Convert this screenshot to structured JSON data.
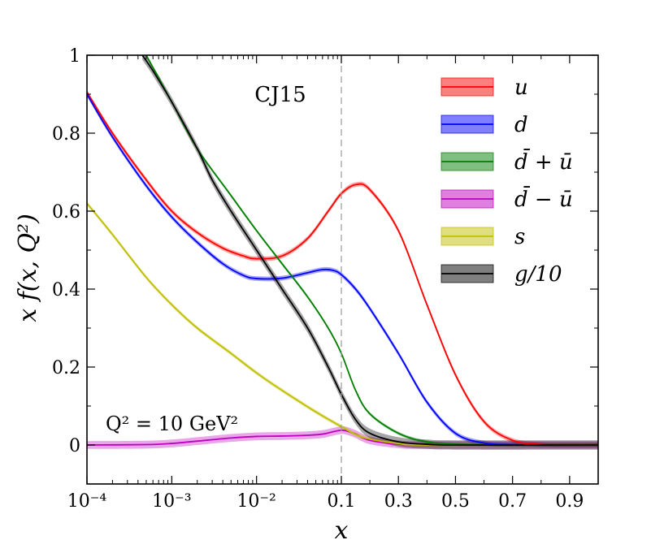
{
  "chart_data": {
    "type": "line",
    "title": "CJ15",
    "annotation": "Q² = 10 GeV²",
    "xlabel": "x",
    "ylabel": "x f(x, Q²)",
    "x_scale": "log below 0.1, linear above 0.1",
    "xlim": [
      0.0001,
      1.0
    ],
    "ylim": [
      -0.1,
      1.0
    ],
    "xticks": [
      0.0001,
      0.001,
      0.01,
      0.1,
      0.3,
      0.5,
      0.7,
      0.9
    ],
    "xtick_labels": [
      "10⁻⁴",
      "10⁻³",
      "10⁻²",
      "0.1",
      "0.3",
      "0.5",
      "0.7",
      "0.9"
    ],
    "yticks": [
      0,
      0.2,
      0.4,
      0.6,
      0.8,
      1
    ],
    "ytick_labels": [
      "0",
      "0.2",
      "0.4",
      "0.6",
      "0.8",
      "1"
    ],
    "reference_line": {
      "x": 0.1,
      "style": "dashed",
      "color": "#999999"
    },
    "legend_position": "top-right",
    "series": [
      {
        "name": "u",
        "label": "u",
        "color": "#ff0000",
        "band": 0.006,
        "points": [
          [
            0.0001,
            0.905
          ],
          [
            0.0002,
            0.8
          ],
          [
            0.0005,
            0.68
          ],
          [
            0.001,
            0.6
          ],
          [
            0.002,
            0.545
          ],
          [
            0.004,
            0.505
          ],
          [
            0.007,
            0.485
          ],
          [
            0.01,
            0.478
          ],
          [
            0.02,
            0.485
          ],
          [
            0.04,
            0.53
          ],
          [
            0.07,
            0.6
          ],
          [
            0.1,
            0.645
          ],
          [
            0.15,
            0.668
          ],
          [
            0.2,
            0.655
          ],
          [
            0.3,
            0.55
          ],
          [
            0.4,
            0.36
          ],
          [
            0.5,
            0.18
          ],
          [
            0.6,
            0.06
          ],
          [
            0.7,
            0.012
          ],
          [
            0.8,
            0.001
          ],
          [
            0.9,
            0.0
          ],
          [
            1.0,
            0.0
          ]
        ]
      },
      {
        "name": "d",
        "label": "d",
        "color": "#0000ff",
        "band": 0.006,
        "points": [
          [
            0.0001,
            0.9
          ],
          [
            0.0002,
            0.79
          ],
          [
            0.0005,
            0.665
          ],
          [
            0.001,
            0.585
          ],
          [
            0.002,
            0.52
          ],
          [
            0.004,
            0.465
          ],
          [
            0.007,
            0.435
          ],
          [
            0.01,
            0.427
          ],
          [
            0.02,
            0.428
          ],
          [
            0.04,
            0.442
          ],
          [
            0.06,
            0.45
          ],
          [
            0.08,
            0.448
          ],
          [
            0.1,
            0.437
          ],
          [
            0.15,
            0.4
          ],
          [
            0.2,
            0.35
          ],
          [
            0.3,
            0.235
          ],
          [
            0.4,
            0.11
          ],
          [
            0.5,
            0.03
          ],
          [
            0.6,
            0.005
          ],
          [
            0.7,
            0.001
          ],
          [
            0.8,
            0.0
          ],
          [
            1.0,
            0.0
          ]
        ]
      },
      {
        "name": "dbar_plus_ubar",
        "label": "d̄ + ū",
        "color": "#008000",
        "band": 0.004,
        "points": [
          [
            0.0005,
            1.0
          ],
          [
            0.001,
            0.88
          ],
          [
            0.002,
            0.76
          ],
          [
            0.005,
            0.64
          ],
          [
            0.01,
            0.55
          ],
          [
            0.02,
            0.465
          ],
          [
            0.04,
            0.38
          ],
          [
            0.07,
            0.3
          ],
          [
            0.1,
            0.235
          ],
          [
            0.15,
            0.14
          ],
          [
            0.2,
            0.08
          ],
          [
            0.3,
            0.03
          ],
          [
            0.4,
            0.008
          ],
          [
            0.5,
            0.002
          ],
          [
            0.7,
            0.0
          ],
          [
            1.0,
            0.0
          ]
        ]
      },
      {
        "name": "dbar_minus_ubar",
        "label": "d̄ − ū",
        "color": "#bf00bf",
        "band": 0.01,
        "points": [
          [
            0.0001,
            0.0
          ],
          [
            0.0005,
            0.001
          ],
          [
            0.001,
            0.004
          ],
          [
            0.002,
            0.01
          ],
          [
            0.005,
            0.018
          ],
          [
            0.01,
            0.022
          ],
          [
            0.02,
            0.023
          ],
          [
            0.04,
            0.025
          ],
          [
            0.06,
            0.028
          ],
          [
            0.08,
            0.034
          ],
          [
            0.1,
            0.038
          ],
          [
            0.12,
            0.036
          ],
          [
            0.15,
            0.028
          ],
          [
            0.2,
            0.012
          ],
          [
            0.3,
            0.002
          ],
          [
            0.4,
            0.0
          ],
          [
            1.0,
            0.0
          ]
        ]
      },
      {
        "name": "s",
        "label": "s",
        "color": "#bfbf00",
        "band": 0.005,
        "points": [
          [
            0.0001,
            0.62
          ],
          [
            0.0002,
            0.54
          ],
          [
            0.0005,
            0.43
          ],
          [
            0.001,
            0.36
          ],
          [
            0.002,
            0.3
          ],
          [
            0.005,
            0.235
          ],
          [
            0.01,
            0.185
          ],
          [
            0.02,
            0.14
          ],
          [
            0.05,
            0.085
          ],
          [
            0.1,
            0.047
          ],
          [
            0.15,
            0.027
          ],
          [
            0.2,
            0.015
          ],
          [
            0.3,
            0.004
          ],
          [
            0.4,
            0.0
          ],
          [
            1.0,
            0.0
          ]
        ]
      },
      {
        "name": "g_over_10",
        "label": "g/10",
        "color": "#000000",
        "band": 0.012,
        "points": [
          [
            0.00045,
            1.0
          ],
          [
            0.0006,
            0.96
          ],
          [
            0.001,
            0.88
          ],
          [
            0.002,
            0.76
          ],
          [
            0.003,
            0.68
          ],
          [
            0.005,
            0.6
          ],
          [
            0.01,
            0.5
          ],
          [
            0.02,
            0.4
          ],
          [
            0.04,
            0.3
          ],
          [
            0.07,
            0.2
          ],
          [
            0.1,
            0.13
          ],
          [
            0.15,
            0.065
          ],
          [
            0.2,
            0.03
          ],
          [
            0.3,
            0.008
          ],
          [
            0.4,
            0.002
          ],
          [
            0.5,
            0.0
          ],
          [
            1.0,
            0.0
          ]
        ]
      }
    ]
  }
}
